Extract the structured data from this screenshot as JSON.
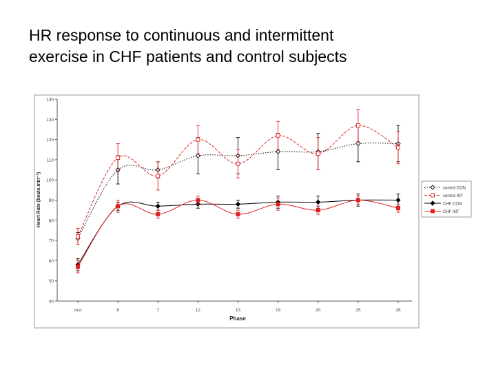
{
  "slide": {
    "title_line1": "HR response to continuous and intermittent",
    "title_line2": "exercise in CHF patients and control subjects"
  },
  "chart_data": {
    "type": "line",
    "title": "",
    "xlabel": "Phase",
    "ylabel": "Heart Rate (beats.min⁻¹)",
    "categories": [
      "rest",
      "6",
      "7",
      "12",
      "13",
      "19",
      "20",
      "25",
      "26"
    ],
    "ylim": [
      40,
      140
    ],
    "yticks": [
      40,
      50,
      60,
      70,
      80,
      90,
      100,
      110,
      120,
      130,
      140
    ],
    "grid": false,
    "legend_position": "right",
    "series": [
      {
        "name": "control CON",
        "color": "#000000",
        "marker": "open-diamond",
        "line": "dotted",
        "values": [
          71,
          105,
          105,
          112,
          112,
          114,
          114,
          118,
          118
        ],
        "errors": [
          3,
          7,
          4,
          9,
          9,
          9,
          9,
          9,
          9
        ]
      },
      {
        "name": "control INT",
        "color": "#e02020",
        "marker": "open-square",
        "line": "dashed",
        "values": [
          72,
          111,
          102,
          120,
          108,
          122,
          113,
          127,
          116
        ],
        "errors": [
          4,
          7,
          7,
          7,
          7,
          7,
          8,
          8,
          8
        ]
      },
      {
        "name": "CHF CON",
        "color": "#000000",
        "marker": "filled-diamond",
        "line": "solid",
        "values": [
          58,
          87,
          87,
          88,
          88,
          89,
          89,
          90,
          90
        ],
        "errors": [
          3,
          2,
          2,
          2,
          2,
          3,
          3,
          3,
          3
        ]
      },
      {
        "name": "CHF INT",
        "color": "#e02020",
        "marker": "filled-square",
        "line": "solid",
        "values": [
          57,
          87,
          83,
          90,
          83,
          88,
          85,
          90,
          86
        ],
        "errors": [
          3,
          3,
          2,
          2,
          2,
          3,
          2,
          2,
          2
        ]
      }
    ]
  }
}
